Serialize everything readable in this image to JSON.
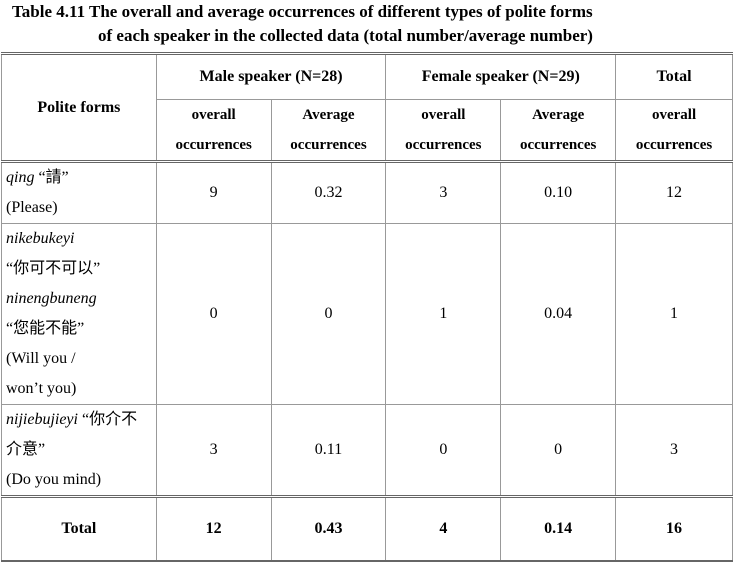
{
  "caption": {
    "line1": "Table 4.11 The overall and average occurrences of different types of polite forms",
    "line2": "of each speaker in the collected data (total number/average number)"
  },
  "table": {
    "header": {
      "corner": "Polite forms",
      "groups": [
        "Male speaker (N=28)",
        "Female speaker (N=29)",
        "Total"
      ],
      "subheaders": [
        [
          "overall",
          "occurrences"
        ],
        [
          "Average",
          "occurrences"
        ],
        [
          "overall",
          "occurrences"
        ],
        [
          "Average",
          "occurrences"
        ],
        [
          "overall",
          "occurrences"
        ]
      ]
    },
    "rows": [
      {
        "entries": [
          {
            "pinyin": "qing",
            "hanzi": "“請”"
          }
        ],
        "gloss": "(Please)",
        "values": [
          "9",
          "0.32",
          "3",
          "0.10",
          "12"
        ]
      },
      {
        "entries": [
          {
            "pinyin": "nikebukeyi",
            "hanzi": "“你可不可以”"
          },
          {
            "pinyin": "ninengbuneng",
            "hanzi": "“您能不能”"
          }
        ],
        "gloss": "(Will you / won’t you)",
        "values": [
          "0",
          "0",
          "1",
          "0.04",
          "1"
        ]
      },
      {
        "entries": [
          {
            "pinyin": "nijiebujieyi",
            "hanzi": "“你介不介意”"
          }
        ],
        "gloss": "(Do you mind)",
        "values": [
          "3",
          "0.11",
          "0",
          "0",
          "3"
        ]
      }
    ],
    "total": {
      "label": "Total",
      "values": [
        "12",
        "0.43",
        "4",
        "0.14",
        "16"
      ]
    }
  }
}
